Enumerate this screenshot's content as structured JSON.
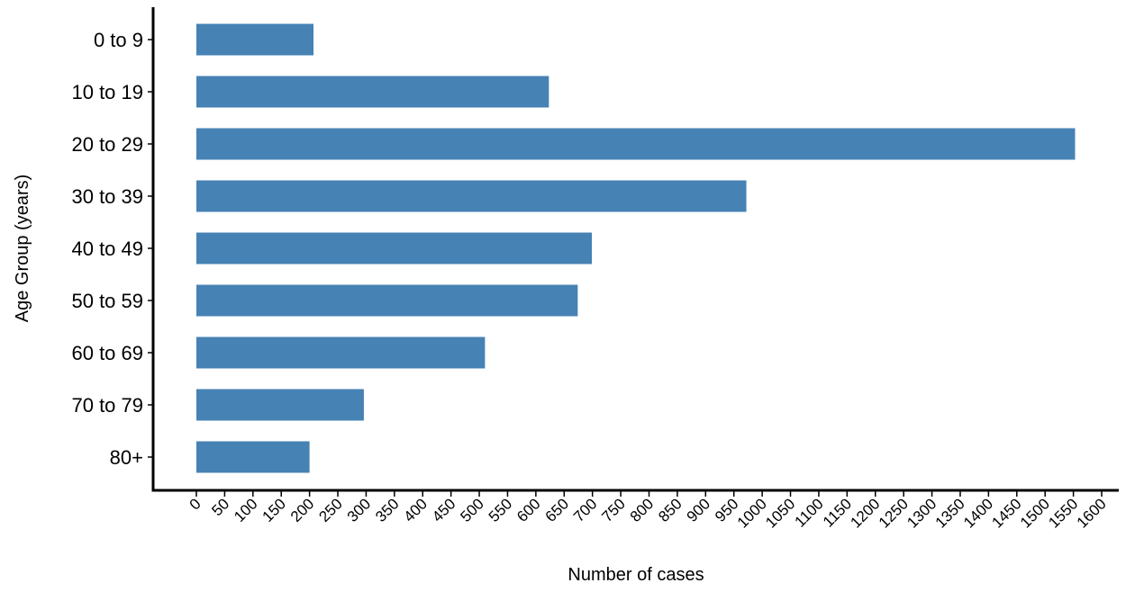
{
  "chart_data": {
    "type": "bar",
    "orientation": "horizontal",
    "title": "",
    "xlabel": "Number of cases",
    "ylabel": "Age Group (years)",
    "categories": [
      "0 to 9",
      "10 to 19",
      "20 to 29",
      "30 to 39",
      "40 to 49",
      "50 to 59",
      "60 to 69",
      "70 to 79",
      "80+"
    ],
    "values": [
      207,
      623,
      1553,
      972,
      699,
      674,
      510,
      296,
      200
    ],
    "xlim": [
      0,
      1600
    ],
    "x_ticks": [
      "0",
      "50",
      "100",
      "150",
      "200",
      "250",
      "300",
      "350",
      "400",
      "450",
      "500",
      "550",
      "600",
      "650",
      "700",
      "750",
      "800",
      "850",
      "900",
      "950",
      "1000",
      "1050",
      "1100",
      "1150",
      "1200",
      "1250",
      "1300",
      "1350",
      "1400",
      "1450",
      "1500",
      "1550",
      "1600"
    ],
    "bar_color": "#4682B4",
    "grid": false,
    "legend": "none"
  }
}
